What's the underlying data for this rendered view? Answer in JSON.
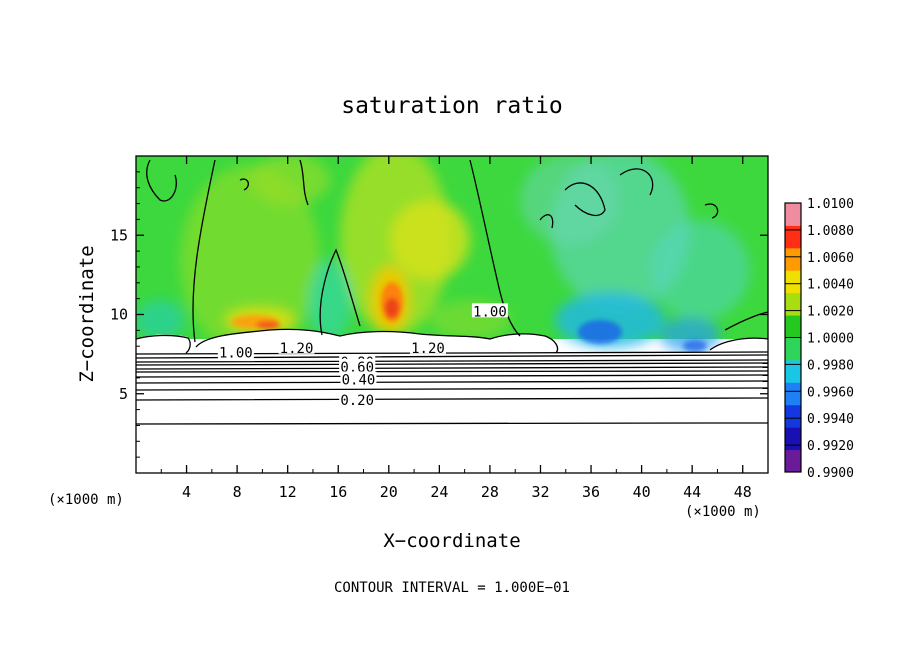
{
  "chart_data": {
    "type": "heatmap",
    "title": "saturation ratio",
    "xlabel": "X−coordinate",
    "ylabel": "Z−coordinate",
    "x_unit_label_left": "(×1000 m)",
    "x_unit_label_right": "(×1000 m)",
    "footer": "CONTOUR INTERVAL = 1.000E−01",
    "xlim": [
      0,
      50
    ],
    "ylim": [
      0,
      20
    ],
    "x_ticks": [
      4,
      8,
      12,
      16,
      20,
      24,
      28,
      32,
      36,
      40,
      44,
      48
    ],
    "x_tick_labels": [
      "4",
      "8",
      "12",
      "16",
      "20",
      "24",
      "28",
      "32",
      "36",
      "40",
      "44",
      "48"
    ],
    "y_ticks": [
      5,
      10,
      15
    ],
    "y_tick_labels": [
      "5",
      "10",
      "15"
    ],
    "colorbar": {
      "min": 0.99,
      "max": 1.01,
      "tick_values": [
        0.99,
        0.992,
        0.994,
        0.996,
        0.998,
        1.0,
        1.002,
        1.004,
        1.006,
        1.008,
        1.01
      ],
      "tick_labels": [
        "0.9900",
        "0.9920",
        "0.9940",
        "0.9960",
        "0.9980",
        "1.0000",
        "1.0020",
        "1.0040",
        "1.0060",
        "1.0080",
        "1.0100"
      ],
      "colors": [
        "#6a1b9a",
        "#1a0fb0",
        "#1438e0",
        "#1f7ff5",
        "#19c6e6",
        "#2fd45a",
        "#24c81e",
        "#a8dd10",
        "#f0e000",
        "#ff9a00",
        "#ff2e14",
        "#f08ca0"
      ]
    },
    "contour_labels": [
      {
        "text": "1.00",
        "x": 7.9,
        "z": 7.6
      },
      {
        "text": "1.20",
        "x": 12.7,
        "z": 7.9
      },
      {
        "text": "1.20",
        "x": 23.1,
        "z": 7.9
      },
      {
        "text": "1.00",
        "x": 28.0,
        "z": 10.2
      },
      {
        "text": "0.80",
        "x": 17.5,
        "z": 7.0
      },
      {
        "text": "0.60",
        "x": 17.5,
        "z": 6.7
      },
      {
        "text": "0.40",
        "x": 17.6,
        "z": 5.9
      },
      {
        "text": "0.20",
        "x": 17.5,
        "z": 4.6
      }
    ]
  }
}
